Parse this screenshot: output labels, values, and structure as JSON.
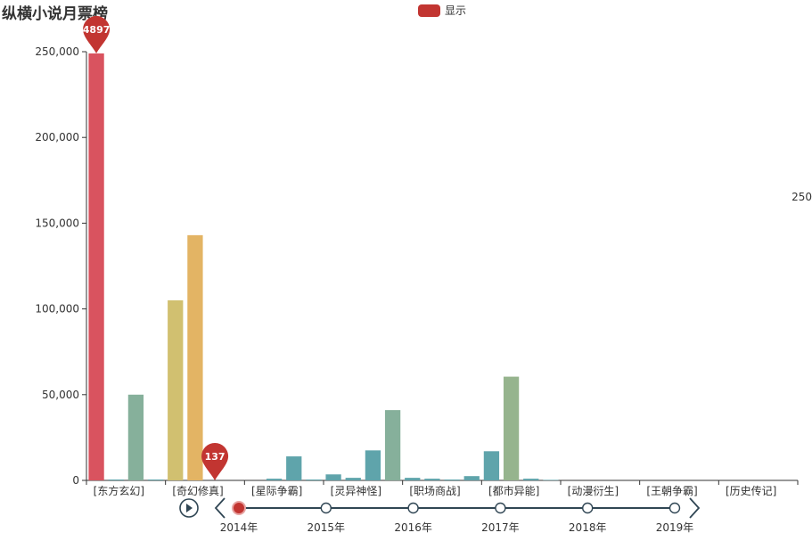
{
  "chart_data": {
    "type": "bar",
    "title": "纵横小说月票榜",
    "legend": {
      "label": "显示",
      "color": "#c23531",
      "position": "top-center"
    },
    "side_label": "250",
    "ylim": [
      0,
      250000
    ],
    "y_ticks": [
      0,
      50000,
      100000,
      150000,
      200000,
      250000
    ],
    "y_tick_labels": [
      "0",
      "50,000",
      "100,000",
      "150,000",
      "200,000",
      "250,000"
    ],
    "categories": [
      "[东方玄幻]",
      "[奇幻修真]",
      "[星际争霸]",
      "[灵异神怪]",
      "[职场商战]",
      "[都市异能]",
      "[动漫衍生]",
      "[王朝争霸]",
      "[历史传记]"
    ],
    "bars": [
      {
        "value": 249000,
        "color": "#d9535f"
      },
      {
        "value": 500,
        "color": "#5fa4ab"
      },
      {
        "value": 50000,
        "color": "#86b09b"
      },
      {
        "value": 500,
        "color": "#5fa4ab"
      },
      {
        "value": 105000,
        "color": "#d1c070"
      },
      {
        "value": 143000,
        "color": "#e3b464"
      },
      {
        "value": 0,
        "color": "#5fa4ab"
      },
      {
        "value": 0,
        "color": "#5fa4ab"
      },
      {
        "value": 0,
        "color": "#5fa4ab"
      },
      {
        "value": 1000,
        "color": "#5fa4ab"
      },
      {
        "value": 14000,
        "color": "#5fa4ab"
      },
      {
        "value": 500,
        "color": "#5fa4ab"
      },
      {
        "value": 3500,
        "color": "#5fa4ab"
      },
      {
        "value": 1500,
        "color": "#5fa4ab"
      },
      {
        "value": 17500,
        "color": "#5fa4ab"
      },
      {
        "value": 41000,
        "color": "#86b09b"
      },
      {
        "value": 1500,
        "color": "#5fa4ab"
      },
      {
        "value": 1000,
        "color": "#5fa4ab"
      },
      {
        "value": 500,
        "color": "#5fa4ab"
      },
      {
        "value": 2500,
        "color": "#5fa4ab"
      },
      {
        "value": 17000,
        "color": "#5fa4ab"
      },
      {
        "value": 60500,
        "color": "#96b48e"
      },
      {
        "value": 1000,
        "color": "#5fa4ab"
      },
      {
        "value": 300,
        "color": "#5fa4ab"
      },
      {
        "value": 0,
        "color": "#5fa4ab"
      },
      {
        "value": 0,
        "color": "#5fa4ab"
      },
      {
        "value": 0,
        "color": "#5fa4ab"
      },
      {
        "value": 0,
        "color": "#5fa4ab"
      },
      {
        "value": 0,
        "color": "#5fa4ab"
      },
      {
        "value": 0,
        "color": "#5fa4ab"
      },
      {
        "value": 0,
        "color": "#5fa4ab"
      },
      {
        "value": 0,
        "color": "#5fa4ab"
      },
      {
        "value": 0,
        "color": "#5fa4ab"
      },
      {
        "value": 0,
        "color": "#5fa4ab"
      },
      {
        "value": 0,
        "color": "#5fa4ab"
      },
      {
        "value": 0,
        "color": "#5fa4ab"
      }
    ],
    "mark_points": [
      {
        "label": "4897",
        "bar_index": 0,
        "value": 249000
      },
      {
        "label": "137",
        "bar_index": 6,
        "value": 0
      }
    ],
    "timeline": {
      "labels": [
        "2014年",
        "2015年",
        "2016年",
        "2017年",
        "2018年",
        "2019年"
      ],
      "current_index": 0,
      "color": "#c23531",
      "line_color": "#304654"
    }
  }
}
